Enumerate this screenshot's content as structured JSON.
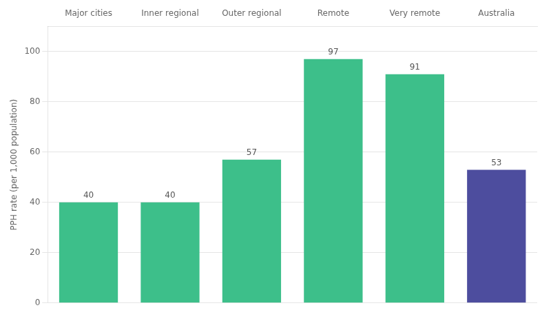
{
  "chart_data": {
    "type": "bar",
    "categories": [
      "Major cities",
      "Inner regional",
      "Outer regional",
      "Remote",
      "Very remote",
      "Australia"
    ],
    "values": [
      40,
      40,
      57,
      97,
      91,
      53
    ],
    "colors": [
      "#3dbf8a",
      "#3dbf8a",
      "#3dbf8a",
      "#3dbf8a",
      "#3dbf8a",
      "#4d4d9e"
    ],
    "ylabel": "PPH rate (per 1,000 population)",
    "ylim": [
      0,
      110
    ],
    "yticks": [
      0,
      20,
      40,
      60,
      80,
      100
    ],
    "grid": true,
    "data_labels": true
  }
}
